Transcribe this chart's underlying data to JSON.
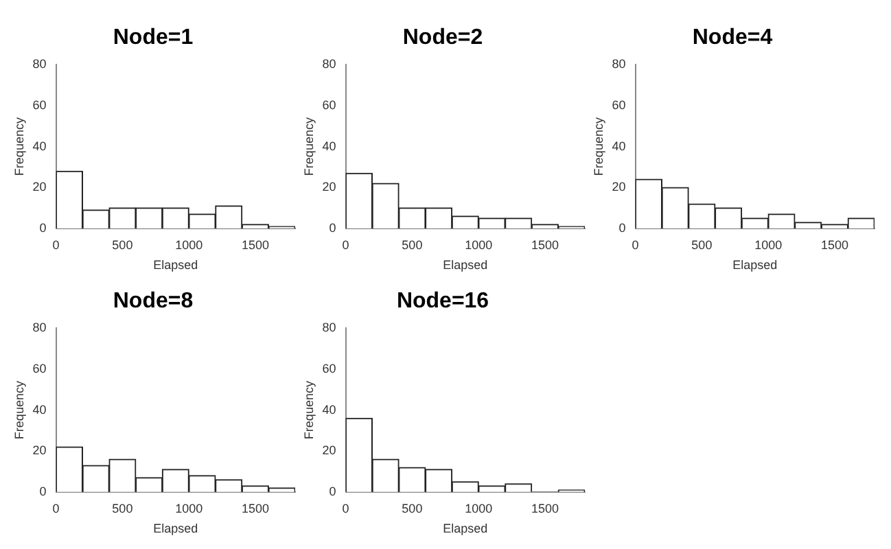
{
  "chart_data": [
    {
      "type": "histogram",
      "title": "Node=1",
      "xlabel": "Elapsed",
      "ylabel": "Frequency",
      "bins": [
        0,
        200,
        400,
        600,
        800,
        1000,
        1200,
        1400,
        1600,
        1800
      ],
      "values": [
        28,
        9,
        10,
        10,
        10,
        7,
        11,
        2,
        1
      ],
      "color": "#ffffff",
      "xlim": [
        0,
        1800
      ],
      "xticks": [
        0,
        500,
        1000,
        1500
      ],
      "ylim": [
        0,
        80
      ],
      "yticks": [
        0,
        20,
        40,
        60,
        80
      ],
      "grid": false,
      "legend": false
    },
    {
      "type": "histogram",
      "title": "Node=2",
      "xlabel": "Elapsed",
      "ylabel": "Frequency",
      "bins": [
        0,
        200,
        400,
        600,
        800,
        1000,
        1200,
        1400,
        1600,
        1800
      ],
      "values": [
        27,
        22,
        10,
        10,
        6,
        5,
        5,
        2,
        1
      ],
      "color": "#ffffff",
      "xlim": [
        0,
        1800
      ],
      "xticks": [
        0,
        500,
        1000,
        1500
      ],
      "ylim": [
        0,
        80
      ],
      "yticks": [
        0,
        20,
        40,
        60,
        80
      ],
      "grid": false,
      "legend": false
    },
    {
      "type": "histogram",
      "title": "Node=4",
      "xlabel": "Elapsed",
      "ylabel": "Frequency",
      "bins": [
        0,
        200,
        400,
        600,
        800,
        1000,
        1200,
        1400,
        1600,
        1800
      ],
      "values": [
        24,
        20,
        12,
        10,
        5,
        7,
        3,
        2,
        5
      ],
      "color": "#ffffff",
      "xlim": [
        0,
        1800
      ],
      "xticks": [
        0,
        500,
        1000,
        1500
      ],
      "ylim": [
        0,
        80
      ],
      "yticks": [
        0,
        20,
        40,
        60,
        80
      ],
      "grid": false,
      "legend": false
    },
    {
      "type": "histogram",
      "title": "Node=8",
      "xlabel": "Elapsed",
      "ylabel": "Frequency",
      "bins": [
        0,
        200,
        400,
        600,
        800,
        1000,
        1200,
        1400,
        1600,
        1800
      ],
      "values": [
        22,
        13,
        16,
        7,
        11,
        8,
        6,
        3,
        2
      ],
      "color": "#ffffff",
      "xlim": [
        0,
        1800
      ],
      "xticks": [
        0,
        500,
        1000,
        1500
      ],
      "ylim": [
        0,
        80
      ],
      "yticks": [
        0,
        20,
        40,
        60,
        80
      ],
      "grid": false,
      "legend": false
    },
    {
      "type": "histogram",
      "title": "Node=16",
      "xlabel": "Elapsed",
      "ylabel": "Frequency",
      "bins": [
        0,
        200,
        400,
        600,
        800,
        1000,
        1200,
        1400,
        1600,
        1800
      ],
      "values": [
        36,
        16,
        12,
        11,
        5,
        3,
        4,
        0,
        1
      ],
      "color": "#ffffff",
      "xlim": [
        0,
        1800
      ],
      "xticks": [
        0,
        500,
        1000,
        1500
      ],
      "ylim": [
        0,
        80
      ],
      "yticks": [
        0,
        20,
        40,
        60,
        80
      ],
      "grid": false,
      "legend": false
    }
  ]
}
